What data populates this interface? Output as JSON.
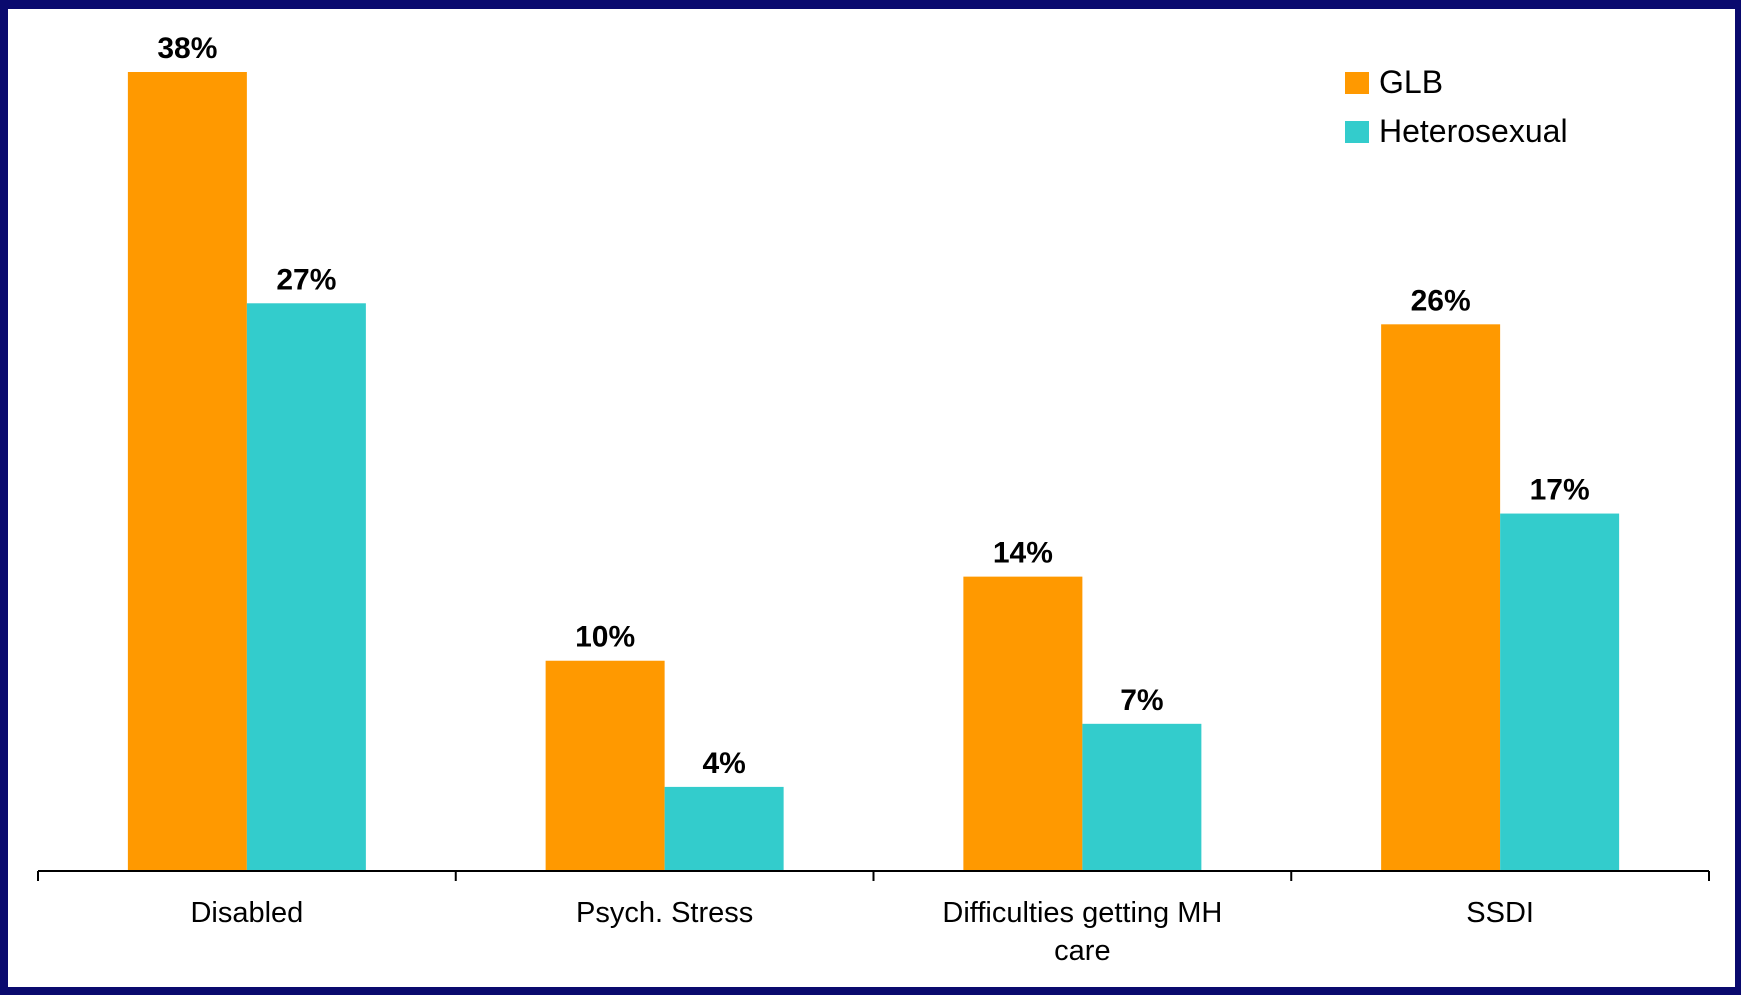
{
  "chart_data": {
    "type": "bar",
    "categories": [
      "Disabled",
      "Psych. Stress",
      "Difficulties getting MH care",
      "SSDI"
    ],
    "category_lines": [
      [
        "Disabled"
      ],
      [
        "Psych. Stress"
      ],
      [
        "Difficulties getting MH",
        "care"
      ],
      [
        "SSDI"
      ]
    ],
    "series": [
      {
        "name": "GLB",
        "values": [
          38,
          10,
          14,
          26
        ],
        "labels": [
          "38%",
          "10%",
          "14%",
          "26%"
        ],
        "color": "#ff9900"
      },
      {
        "name": "Heterosexual",
        "values": [
          27,
          4,
          7,
          17
        ],
        "labels": [
          "27%",
          "4%",
          "7%",
          "17%"
        ],
        "color": "#33cccc"
      }
    ],
    "title": "",
    "xlabel": "",
    "ylabel": "",
    "ylim": [
      0,
      38
    ],
    "grid": false,
    "legend": "top-right",
    "background": "#ffffff",
    "border_color": "#0a0a6e"
  }
}
